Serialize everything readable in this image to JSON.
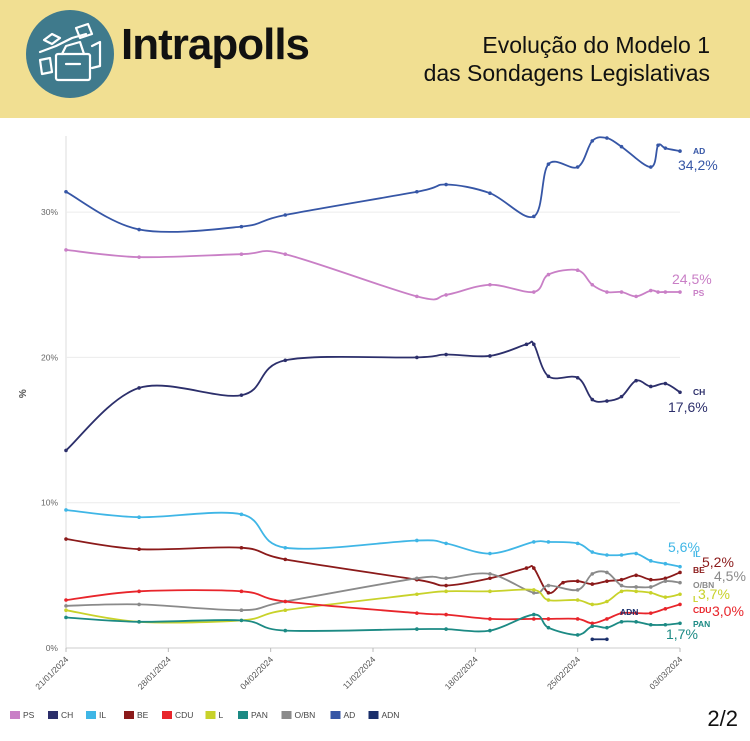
{
  "header": {
    "brand": "Intrapolls",
    "title_line1": "Evolução do Modelo 1",
    "title_line2": "das Sondagens Legislativas"
  },
  "page_indicator": "2/2",
  "colors": {
    "header_bg": "#f1df92",
    "logo_bg": "#3f7a8c",
    "PS": "#c97fc6",
    "CH": "#2c2f6b",
    "IL": "#3fb6e6",
    "BE": "#8b1a1a",
    "CDU": "#e8252b",
    "L": "#c8d22a",
    "PAN": "#1c8a84",
    "O/BN": "#8a8a8a",
    "AD": "#3656a6",
    "ADN": "#1a2f6b"
  },
  "chart_data": {
    "type": "line",
    "ylabel": "%",
    "ylim": [
      0,
      35
    ],
    "yticks": [
      0,
      10,
      20,
      30
    ],
    "ytick_labels": [
      "0%",
      "10%",
      "20%",
      "30%"
    ],
    "x_range": [
      0,
      42
    ],
    "xticks": [
      0,
      7,
      14,
      21,
      28,
      35,
      42
    ],
    "xtick_labels": [
      "21/01/2024",
      "28/01/2024",
      "04/02/2024",
      "11/02/2024",
      "18/02/2024",
      "25/02/2024",
      "03/03/2024"
    ],
    "series": [
      {
        "name": "AD",
        "x": [
          0,
          5,
          12,
          15,
          24,
          26,
          29,
          32,
          33,
          35,
          36,
          37,
          38,
          40,
          40.5,
          41,
          42
        ],
        "values": [
          31.4,
          28.8,
          29.0,
          29.8,
          31.4,
          31.9,
          31.3,
          29.7,
          33.3,
          33.1,
          34.9,
          35.1,
          34.5,
          33.1,
          34.6,
          34.4,
          34.2
        ]
      },
      {
        "name": "PS",
        "x": [
          0,
          5,
          12,
          15,
          24,
          26,
          29,
          32,
          33,
          35,
          36,
          37,
          38,
          39,
          40,
          40.5,
          41,
          42
        ],
        "values": [
          27.4,
          26.9,
          27.1,
          27.1,
          24.2,
          24.3,
          25.0,
          24.5,
          25.7,
          26.0,
          25.0,
          24.5,
          24.5,
          24.2,
          24.6,
          24.5,
          24.5,
          24.5
        ]
      },
      {
        "name": "CH",
        "x": [
          0,
          5,
          12,
          15,
          24,
          26,
          29,
          31.5,
          32,
          33,
          35,
          36,
          37,
          38,
          39,
          40,
          41,
          42
        ],
        "values": [
          13.6,
          17.9,
          17.4,
          19.8,
          20.0,
          20.2,
          20.1,
          20.9,
          20.9,
          18.7,
          18.6,
          17.1,
          17.0,
          17.3,
          18.4,
          18.0,
          18.2,
          17.6
        ]
      },
      {
        "name": "IL",
        "x": [
          0,
          5,
          12,
          15,
          24,
          26,
          29,
          32,
          33,
          35,
          36,
          37,
          38,
          39,
          40,
          41,
          42
        ],
        "values": [
          9.5,
          9.0,
          9.2,
          6.9,
          7.4,
          7.2,
          6.5,
          7.3,
          7.3,
          7.2,
          6.6,
          6.4,
          6.4,
          6.5,
          6.0,
          5.8,
          5.6
        ]
      },
      {
        "name": "BE",
        "x": [
          0,
          5,
          12,
          15,
          24,
          26,
          29,
          31.5,
          32,
          33,
          34,
          35,
          36,
          37,
          38,
          39,
          40,
          41,
          42
        ],
        "values": [
          7.5,
          6.8,
          6.9,
          6.1,
          4.7,
          4.3,
          4.8,
          5.5,
          5.5,
          3.8,
          4.5,
          4.6,
          4.4,
          4.6,
          4.7,
          5.0,
          4.7,
          4.8,
          5.2
        ]
      },
      {
        "name": "O/BN",
        "x": [
          0,
          5,
          12,
          15,
          24,
          26,
          29,
          32,
          33,
          35,
          36,
          37,
          38,
          39,
          40,
          41,
          42
        ],
        "values": [
          2.9,
          3.0,
          2.6,
          3.2,
          4.8,
          4.8,
          5.1,
          3.8,
          4.3,
          4.0,
          5.1,
          5.2,
          4.3,
          4.2,
          4.2,
          4.6,
          4.5
        ]
      },
      {
        "name": "L",
        "x": [
          0,
          5,
          12,
          15,
          24,
          26,
          29,
          32,
          33,
          35,
          36,
          37,
          38,
          39,
          40,
          41,
          42
        ],
        "values": [
          2.6,
          1.8,
          1.9,
          2.6,
          3.7,
          3.9,
          3.9,
          4.0,
          3.3,
          3.3,
          3.0,
          3.2,
          3.9,
          3.9,
          3.8,
          3.5,
          3.7
        ]
      },
      {
        "name": "CDU",
        "x": [
          0,
          5,
          12,
          15,
          24,
          26,
          29,
          32,
          33,
          35,
          36,
          37,
          38,
          39,
          40,
          41,
          42
        ],
        "values": [
          3.3,
          3.9,
          3.9,
          3.2,
          2.4,
          2.3,
          2.0,
          2.0,
          2.0,
          2.0,
          1.7,
          2.0,
          2.4,
          2.4,
          2.4,
          2.7,
          3.0
        ]
      },
      {
        "name": "PAN",
        "x": [
          0,
          5,
          12,
          15,
          24,
          26,
          29,
          32,
          33,
          35,
          36,
          37,
          38,
          39,
          40,
          41,
          42
        ],
        "values": [
          2.1,
          1.8,
          1.9,
          1.2,
          1.3,
          1.3,
          1.2,
          2.3,
          1.4,
          0.9,
          1.5,
          1.4,
          1.8,
          1.8,
          1.6,
          1.6,
          1.7
        ]
      },
      {
        "name": "ADN",
        "x": [
          36,
          37
        ],
        "values": [
          0.6,
          0.6
        ]
      }
    ],
    "end_labels": [
      {
        "name": "AD",
        "short": "AD",
        "value": "34,2%"
      },
      {
        "name": "PS",
        "short": "PS",
        "value": "24,5%"
      },
      {
        "name": "CH",
        "short": "CH",
        "value": "17,6%"
      },
      {
        "name": "IL",
        "short": "IL",
        "value": "5,6%"
      },
      {
        "name": "BE",
        "short": "BE",
        "value": "5,2%"
      },
      {
        "name": "O/BN",
        "short": "O/BN",
        "value": "4,5%"
      },
      {
        "name": "L",
        "short": "L",
        "value": "3,7%"
      },
      {
        "name": "CDU",
        "short": "CDU",
        "value": "3,0%"
      },
      {
        "name": "PAN",
        "short": "PAN",
        "value": "1,7%"
      },
      {
        "name": "ADN",
        "short": "ADN",
        "value": ""
      }
    ],
    "legend": [
      "PS",
      "CH",
      "IL",
      "BE",
      "CDU",
      "L",
      "PAN",
      "O/BN",
      "AD",
      "ADN"
    ],
    "legend_position": "bottom-left"
  }
}
